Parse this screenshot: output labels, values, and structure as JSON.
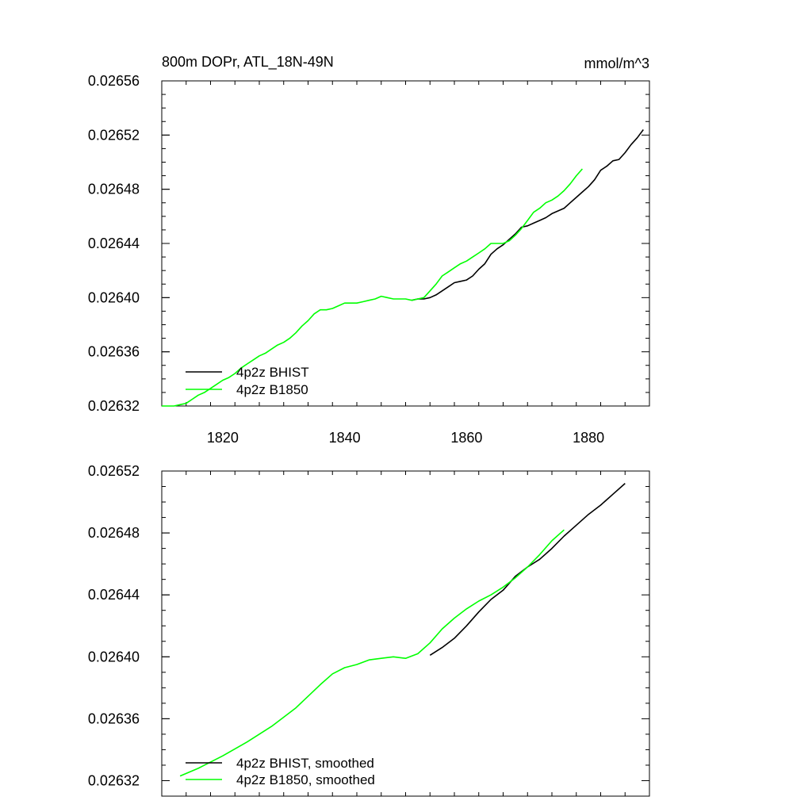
{
  "chart_data": [
    {
      "type": "line",
      "title": "800m DOPr, ATL_18N-49N",
      "units": "mmol/m^3",
      "xlim": [
        1810,
        1890
      ],
      "ylim": [
        0.02632,
        0.02656
      ],
      "x_ticks": [
        1820,
        1840,
        1860,
        1880
      ],
      "x_tick_labels": [
        "1820",
        "1840",
        "1860",
        "1880"
      ],
      "y_ticks": [
        0.02632,
        0.02636,
        0.0264,
        0.02644,
        0.02648,
        0.02652,
        0.02656
      ],
      "y_tick_labels": [
        "0.02632",
        "0.02636",
        "0.02640",
        "0.02644",
        "0.02648",
        "0.02652",
        "0.02656"
      ],
      "legend": [
        "4p2z BHIST",
        "4p2z B1850"
      ],
      "legend_position": "bottom-left",
      "series": [
        {
          "name": "4p2z BHIST",
          "color": "#000000",
          "x": [
            1851,
            1852,
            1853,
            1854,
            1855,
            1856,
            1857,
            1858,
            1859,
            1860,
            1861,
            1862,
            1863,
            1864,
            1865,
            1866,
            1867,
            1868,
            1869,
            1870,
            1871,
            1872,
            1873,
            1874,
            1875,
            1876,
            1877,
            1878,
            1879,
            1880,
            1881,
            1882,
            1883,
            1884,
            1885,
            1886,
            1887,
            1888,
            1889
          ],
          "values": [
            0.026398,
            0.026399,
            0.026399,
            0.0264,
            0.026402,
            0.026405,
            0.026408,
            0.026411,
            0.026412,
            0.026413,
            0.026416,
            0.026421,
            0.026425,
            0.026432,
            0.026436,
            0.026439,
            0.026443,
            0.026447,
            0.026452,
            0.026453,
            0.026455,
            0.026457,
            0.026459,
            0.026462,
            0.026464,
            0.026466,
            0.02647,
            0.026474,
            0.026478,
            0.026482,
            0.026487,
            0.026494,
            0.026497,
            0.026501,
            0.026502,
            0.026507,
            0.026513,
            0.026518,
            0.026524
          ]
        },
        {
          "name": "4p2z B1850",
          "color": "#00ff00",
          "x": [
            1810,
            1811,
            1812,
            1813,
            1814,
            1815,
            1816,
            1817,
            1818,
            1819,
            1820,
            1821,
            1822,
            1823,
            1824,
            1825,
            1826,
            1827,
            1828,
            1829,
            1830,
            1831,
            1832,
            1833,
            1834,
            1835,
            1836,
            1837,
            1838,
            1839,
            1840,
            1841,
            1842,
            1843,
            1844,
            1845,
            1846,
            1847,
            1848,
            1849,
            1850,
            1851,
            1852,
            1853,
            1854,
            1855,
            1856,
            1857,
            1858,
            1859,
            1860,
            1861,
            1862,
            1863,
            1864,
            1865,
            1866,
            1867,
            1868,
            1869,
            1870,
            1871,
            1872,
            1873,
            1874,
            1875,
            1876,
            1877,
            1878,
            1879
          ],
          "values": [
            0.02632,
            0.02632,
            0.02632,
            0.026321,
            0.026322,
            0.026325,
            0.026328,
            0.02633,
            0.026333,
            0.026336,
            0.026339,
            0.026341,
            0.026344,
            0.026348,
            0.026351,
            0.026354,
            0.026357,
            0.026359,
            0.026362,
            0.026365,
            0.026367,
            0.02637,
            0.026374,
            0.026379,
            0.026383,
            0.026388,
            0.026391,
            0.026391,
            0.026392,
            0.026394,
            0.026396,
            0.026396,
            0.026396,
            0.026397,
            0.026398,
            0.026399,
            0.026401,
            0.0264,
            0.026399,
            0.026399,
            0.026399,
            0.026398,
            0.026399,
            0.0264,
            0.026405,
            0.02641,
            0.026416,
            0.026419,
            0.026422,
            0.026425,
            0.026427,
            0.02643,
            0.026433,
            0.026436,
            0.02644,
            0.02644,
            0.02644,
            0.026442,
            0.026446,
            0.026451,
            0.026457,
            0.026463,
            0.026466,
            0.02647,
            0.026472,
            0.026475,
            0.026479,
            0.026484,
            0.02649,
            0.026495
          ]
        }
      ]
    },
    {
      "type": "line",
      "title": "",
      "xlim": [
        1810,
        1890
      ],
      "ylim": [
        0.02631,
        0.02652
      ],
      "x_ticks": [
        1820,
        1840,
        1860,
        1880
      ],
      "y_ticks": [
        0.02632,
        0.02636,
        0.0264,
        0.02644,
        0.02648,
        0.02652
      ],
      "y_tick_labels": [
        "0.02632",
        "0.02636",
        "0.02640",
        "0.02644",
        "0.02648",
        "0.02652"
      ],
      "legend": [
        "4p2z BHIST, smoothed",
        "4p2z B1850, smoothed"
      ],
      "legend_position": "bottom-left",
      "series": [
        {
          "name": "4p2z BHIST, smoothed",
          "color": "#000000",
          "x": [
            1854,
            1856,
            1858,
            1860,
            1862,
            1864,
            1866,
            1868,
            1870,
            1872,
            1874,
            1876,
            1878,
            1880,
            1882,
            1884,
            1886
          ],
          "values": [
            0.026401,
            0.026406,
            0.026412,
            0.02642,
            0.026429,
            0.026437,
            0.026443,
            0.026452,
            0.026458,
            0.026463,
            0.02647,
            0.026478,
            0.026485,
            0.026492,
            0.026498,
            0.026505,
            0.026512
          ]
        },
        {
          "name": "4p2z B1850, smoothed",
          "color": "#00ff00",
          "x": [
            1813,
            1816,
            1820,
            1824,
            1828,
            1832,
            1836,
            1838,
            1840,
            1842,
            1844,
            1846,
            1848,
            1850,
            1852,
            1854,
            1856,
            1858,
            1860,
            1862,
            1864,
            1866,
            1868,
            1870,
            1872,
            1874,
            1876
          ],
          "values": [
            0.026323,
            0.026328,
            0.026336,
            0.026345,
            0.026355,
            0.026367,
            0.026382,
            0.026389,
            0.026393,
            0.026395,
            0.026398,
            0.026399,
            0.0264,
            0.026399,
            0.026402,
            0.026409,
            0.026418,
            0.026425,
            0.026431,
            0.026436,
            0.02644,
            0.026445,
            0.026451,
            0.026458,
            0.026466,
            0.026475,
            0.026482
          ]
        }
      ]
    }
  ]
}
